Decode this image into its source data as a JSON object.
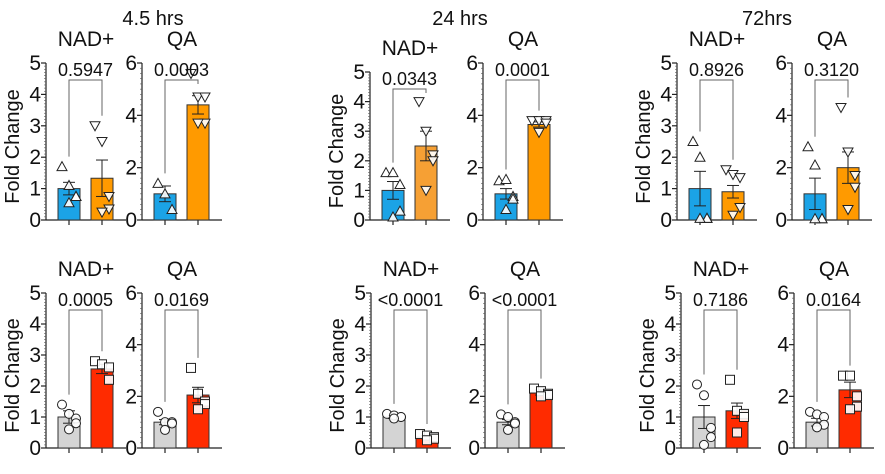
{
  "column_headers": [
    "4.5 hrs",
    "24 hrs",
    "72hrs"
  ],
  "y_axis_label": "Fold Change",
  "colors": {
    "blue": "#1ba3e6",
    "orange": "#ff9a00",
    "orange_light": "#f6a034",
    "gray": "#d4d4d4",
    "red": "#ff2b00",
    "axis": "#222222"
  },
  "chart_data": [
    {
      "type": "bar",
      "column": "4.5 hrs",
      "row": 1,
      "title": "NAD+",
      "ylabel": "Fold Change",
      "ylim": [
        0,
        5
      ],
      "yticks": [
        0,
        1,
        2,
        3,
        4,
        5
      ],
      "p_value": "0.5947",
      "groups": [
        {
          "color": "blue",
          "marker": "triangle-up",
          "mean": 1.0,
          "sem": 0.2,
          "points": [
            1.7,
            1.1,
            0.75,
            0.75,
            0.55
          ]
        },
        {
          "color": "orange",
          "marker": "triangle-down",
          "mean": 1.33,
          "sem": 0.58,
          "points": [
            3.0,
            2.5,
            0.75,
            0.35,
            0.25
          ]
        }
      ]
    },
    {
      "type": "bar",
      "column": "4.5 hrs",
      "row": 1,
      "title": "QA",
      "ylabel": "",
      "ylim": [
        0,
        6
      ],
      "yticks": [
        0,
        2,
        4,
        6
      ],
      "p_value": "0.0003",
      "groups": [
        {
          "color": "blue",
          "marker": "triangle-up",
          "mean": 1.0,
          "sem": 0.3,
          "points": [
            1.4,
            1.0,
            0.4
          ]
        },
        {
          "color": "orange",
          "marker": "triangle-down",
          "mean": 4.4,
          "sem": 0.35,
          "points": [
            5.6,
            4.7,
            4.7,
            3.7,
            3.7
          ]
        }
      ]
    },
    {
      "type": "bar",
      "column": "24 hrs",
      "row": 1,
      "title": "NAD+",
      "ylabel": "Fold Change",
      "ylim": [
        0,
        5
      ],
      "yticks": [
        0,
        1,
        2,
        3,
        4,
        5
      ],
      "p_value": "0.0343",
      "groups": [
        {
          "color": "blue",
          "marker": "triangle-up",
          "mean": 1.0,
          "sem": 0.3,
          "points": [
            1.6,
            1.6,
            1.2,
            0.3,
            0.1
          ]
        },
        {
          "color": "orange_light",
          "marker": "triangle-down",
          "mean": 2.5,
          "sem": 0.5,
          "points": [
            4.0,
            3.0,
            2.2,
            2.0,
            1.0
          ]
        }
      ]
    },
    {
      "type": "bar",
      "column": "24 hrs",
      "row": 1,
      "title": "QA",
      "ylabel": "",
      "ylim": [
        0,
        6
      ],
      "yticks": [
        0,
        2,
        4,
        6
      ],
      "p_value": "0.0001",
      "groups": [
        {
          "color": "blue",
          "marker": "triangle-up",
          "mean": 1.0,
          "sem": 0.2,
          "points": [
            1.5,
            1.55,
            0.9,
            0.8,
            0.4
          ]
        },
        {
          "color": "orange",
          "marker": "triangle-down",
          "mean": 3.65,
          "sem": 0.1,
          "points": [
            3.8,
            3.8,
            3.8,
            3.7,
            3.35
          ]
        }
      ]
    },
    {
      "type": "bar",
      "column": "72hrs",
      "row": 1,
      "title": "NAD+",
      "ylabel": "Fold Change",
      "ylim": [
        0,
        5
      ],
      "yticks": [
        0,
        1,
        2,
        3,
        4,
        5
      ],
      "p_value": "0.8926",
      "groups": [
        {
          "color": "blue",
          "marker": "triangle-up",
          "mean": 1.0,
          "sem": 0.55,
          "points": [
            2.5,
            2.0,
            0.05,
            0.05,
            0.05
          ]
        },
        {
          "color": "orange",
          "marker": "triangle-down",
          "mean": 0.9,
          "sem": 0.2,
          "points": [
            1.6,
            1.45,
            1.35,
            0.4,
            0.15
          ]
        }
      ]
    },
    {
      "type": "bar",
      "column": "72hrs",
      "row": 1,
      "title": "QA",
      "ylabel": "",
      "ylim": [
        0,
        6
      ],
      "yticks": [
        0,
        2,
        4,
        6
      ],
      "p_value": "0.3120",
      "groups": [
        {
          "color": "blue",
          "marker": "triangle-up",
          "mean": 1.0,
          "sem": 0.6,
          "points": [
            2.8,
            2.1,
            0.05,
            0.05,
            0.05
          ]
        },
        {
          "color": "orange",
          "marker": "triangle-down",
          "mean": 2.0,
          "sem": 0.6,
          "points": [
            4.3,
            2.6,
            1.7,
            1.25,
            0.4
          ]
        }
      ]
    },
    {
      "type": "bar",
      "column": "4.5 hrs",
      "row": 2,
      "title": "NAD+",
      "ylabel": "Fold Change",
      "ylim": [
        0,
        5
      ],
      "yticks": [
        0,
        1,
        2,
        3,
        4,
        5
      ],
      "p_value": "0.0005",
      "groups": [
        {
          "color": "gray",
          "marker": "circle",
          "mean": 1.0,
          "sem": 0.2,
          "points": [
            1.4,
            1.1,
            0.95,
            0.8,
            0.6
          ]
        },
        {
          "color": "red",
          "marker": "square",
          "mean": 2.55,
          "sem": 0.15,
          "points": [
            2.8,
            2.7,
            2.6,
            2.2
          ]
        }
      ]
    },
    {
      "type": "bar",
      "column": "4.5 hrs",
      "row": 2,
      "title": "QA",
      "ylabel": "",
      "ylim": [
        0,
        6
      ],
      "yticks": [
        0,
        2,
        4,
        6
      ],
      "p_value": "0.0169",
      "groups": [
        {
          "color": "gray",
          "marker": "circle",
          "mean": 1.0,
          "sem": 0.1,
          "points": [
            1.4,
            1.0,
            1.0,
            0.95,
            0.7
          ]
        },
        {
          "color": "red",
          "marker": "square",
          "mean": 2.05,
          "sem": 0.3,
          "points": [
            3.1,
            2.1,
            1.8,
            1.7,
            1.5
          ]
        }
      ]
    },
    {
      "type": "bar",
      "column": "24 hrs",
      "row": 2,
      "title": "NAD+",
      "ylabel": "Fold Change",
      "ylim": [
        0,
        5
      ],
      "yticks": [
        0,
        1,
        2,
        3,
        4,
        5
      ],
      "p_value": "<0.0001",
      "groups": [
        {
          "color": "gray",
          "marker": "circle",
          "mean": 1.0,
          "sem": 0.05,
          "points": [
            1.1,
            1.05,
            1.0,
            1.0,
            0.95
          ]
        },
        {
          "color": "red",
          "marker": "square",
          "mean": 0.35,
          "sem": 0.05,
          "points": [
            0.45,
            0.4,
            0.35,
            0.3,
            0.25
          ]
        }
      ]
    },
    {
      "type": "bar",
      "column": "24 hrs",
      "row": 2,
      "title": "QA",
      "ylabel": "",
      "ylim": [
        0,
        6
      ],
      "yticks": [
        0,
        2,
        4,
        6
      ],
      "p_value": "<0.0001",
      "groups": [
        {
          "color": "gray",
          "marker": "circle",
          "mean": 1.0,
          "sem": 0.1,
          "points": [
            1.3,
            1.2,
            1.0,
            0.95,
            0.7
          ]
        },
        {
          "color": "red",
          "marker": "square",
          "mean": 2.15,
          "sem": 0.1,
          "points": [
            2.3,
            2.2,
            2.1,
            2.05,
            2.0
          ]
        }
      ]
    },
    {
      "type": "bar",
      "column": "72hrs",
      "row": 2,
      "title": "NAD+",
      "ylabel": "Fold Change",
      "ylim": [
        0,
        5
      ],
      "yticks": [
        0,
        1,
        2,
        3,
        4,
        5
      ],
      "p_value": "0.7186",
      "groups": [
        {
          "color": "gray",
          "marker": "circle",
          "mean": 1.0,
          "sem": 0.37,
          "points": [
            2.05,
            1.7,
            0.65,
            0.35,
            0.1
          ]
        },
        {
          "color": "red",
          "marker": "square",
          "mean": 1.2,
          "sem": 0.25,
          "points": [
            2.2,
            1.2,
            1.1,
            1.0,
            0.5
          ]
        }
      ]
    },
    {
      "type": "bar",
      "column": "72hrs",
      "row": 2,
      "title": "QA",
      "ylabel": "",
      "ylim": [
        0,
        6
      ],
      "yticks": [
        0,
        2,
        4,
        6
      ],
      "p_value": "0.0164",
      "groups": [
        {
          "color": "gray",
          "marker": "circle",
          "mean": 1.0,
          "sem": 0.15,
          "points": [
            1.4,
            1.3,
            1.2,
            0.9,
            0.8
          ]
        },
        {
          "color": "red",
          "marker": "square",
          "mean": 2.25,
          "sem": 0.3,
          "points": [
            2.8,
            2.8,
            2.0,
            1.6,
            1.5
          ]
        }
      ]
    }
  ]
}
